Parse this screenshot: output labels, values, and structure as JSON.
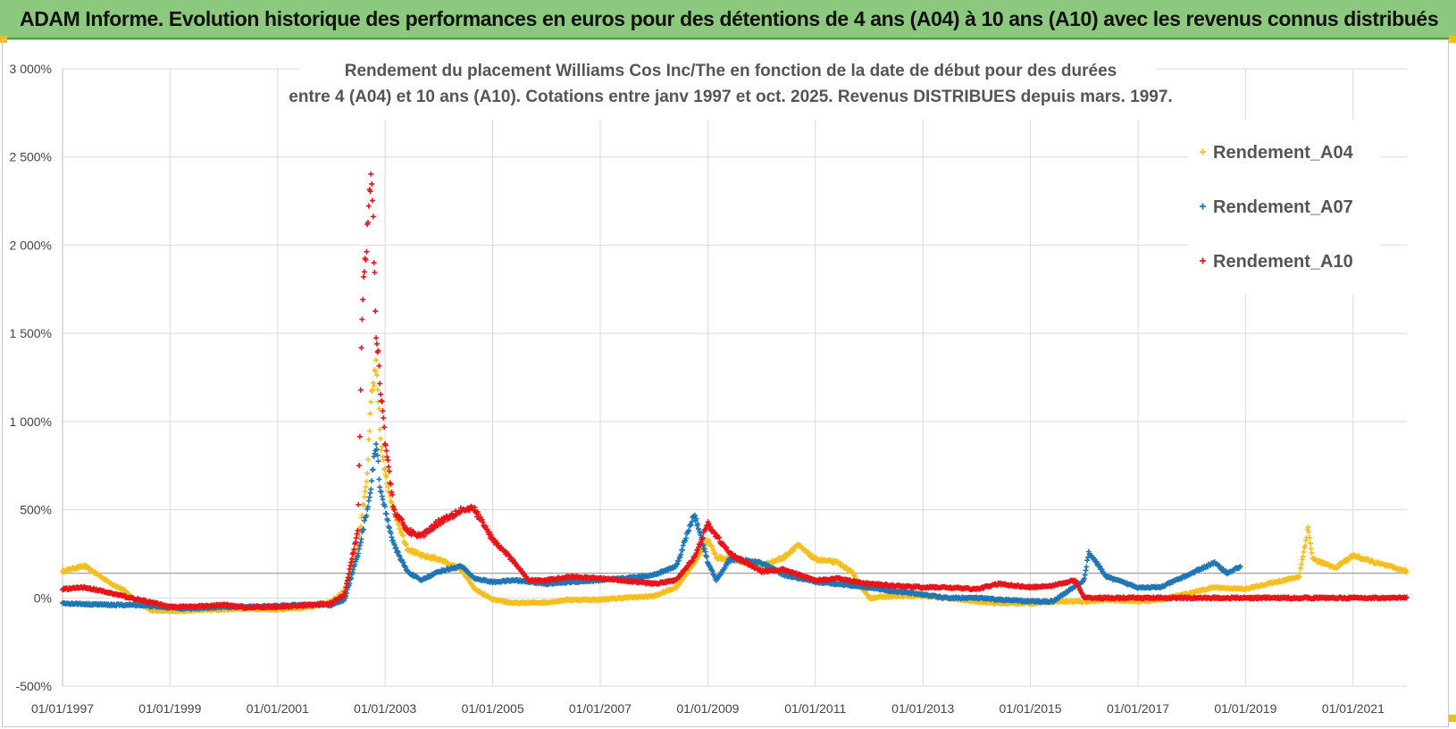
{
  "header": {
    "title": "ADAM Informe. Evolution historique des performances en euros pour des détentions de 4 ans (A04) à 10 ans (A10) avec les revenus connus distribués"
  },
  "chart_data": {
    "type": "scatter",
    "title_lines": [
      "Rendement du placement Williams Cos Inc/The en fonction de la date de début pour des durées",
      "entre 4 (A04) et 10 ans (A10).  Cotations entre janv 1997 et oct. 2025.  Revenus DISTRIBUES depuis mars. 1997."
    ],
    "xlabel": "",
    "ylabel": "",
    "x_range": [
      "1997-01-01",
      "2022-01-01"
    ],
    "ylim": [
      -500,
      3000
    ],
    "y_ticks": [
      {
        "value": 3000,
        "label": "3 000%"
      },
      {
        "value": 2500,
        "label": "2 500%"
      },
      {
        "value": 2000,
        "label": "2 000%"
      },
      {
        "value": 1500,
        "label": "1 500%"
      },
      {
        "value": 1000,
        "label": "1 000%"
      },
      {
        "value": 500,
        "label": "500%"
      },
      {
        "value": 0,
        "label": "0%"
      },
      {
        "value": -500,
        "label": "-500%"
      }
    ],
    "x_ticks": [
      {
        "value": "1997-01-01",
        "label": "01/01/1997"
      },
      {
        "value": "1999-01-01",
        "label": "01/01/1999"
      },
      {
        "value": "2001-01-01",
        "label": "01/01/2001"
      },
      {
        "value": "2003-01-01",
        "label": "01/01/2003"
      },
      {
        "value": "2005-01-01",
        "label": "01/01/2005"
      },
      {
        "value": "2007-01-01",
        "label": "01/01/2007"
      },
      {
        "value": "2009-01-01",
        "label": "01/01/2009"
      },
      {
        "value": "2011-01-01",
        "label": "01/01/2011"
      },
      {
        "value": "2013-01-01",
        "label": "01/01/2013"
      },
      {
        "value": "2015-01-01",
        "label": "01/01/2015"
      },
      {
        "value": "2017-01-01",
        "label": "01/01/2017"
      },
      {
        "value": "2019-01-01",
        "label": "01/01/2019"
      },
      {
        "value": "2021-01-01",
        "label": "01/01/2021"
      }
    ],
    "grid": true,
    "legend_position": "top-right",
    "reference_line": {
      "value": 140,
      "color": "#a0a0a0"
    },
    "series": [
      {
        "name": "Rendement_A04",
        "color": "#f5bf1e",
        "points": [
          [
            "1997-01-01",
            150
          ],
          [
            "1997-03-01",
            165
          ],
          [
            "1997-06-01",
            180
          ],
          [
            "1997-09-01",
            130
          ],
          [
            "1997-12-01",
            80
          ],
          [
            "1998-03-01",
            40
          ],
          [
            "1998-06-01",
            -30
          ],
          [
            "1998-09-01",
            -70
          ],
          [
            "1999-01-01",
            -75
          ],
          [
            "1999-06-01",
            -70
          ],
          [
            "2000-01-01",
            -65
          ],
          [
            "2000-06-01",
            -60
          ],
          [
            "2001-01-01",
            -65
          ],
          [
            "2001-06-01",
            -55
          ],
          [
            "2001-09-01",
            -50
          ],
          [
            "2002-01-01",
            -20
          ],
          [
            "2002-04-01",
            40
          ],
          [
            "2002-07-01",
            300
          ],
          [
            "2002-09-01",
            700
          ],
          [
            "2002-10-01",
            1150
          ],
          [
            "2002-11-01",
            1300
          ],
          [
            "2002-12-01",
            900
          ],
          [
            "2003-01-01",
            700
          ],
          [
            "2003-03-01",
            500
          ],
          [
            "2003-06-01",
            280
          ],
          [
            "2003-09-01",
            240
          ],
          [
            "2004-01-01",
            220
          ],
          [
            "2004-06-01",
            160
          ],
          [
            "2004-09-01",
            50
          ],
          [
            "2005-01-01",
            -10
          ],
          [
            "2005-06-01",
            -30
          ],
          [
            "2006-01-01",
            -25
          ],
          [
            "2006-06-01",
            -10
          ],
          [
            "2007-01-01",
            -10
          ],
          [
            "2007-06-01",
            0
          ],
          [
            "2008-01-01",
            10
          ],
          [
            "2008-06-01",
            60
          ],
          [
            "2008-10-01",
            200
          ],
          [
            "2009-01-01",
            330
          ],
          [
            "2009-03-01",
            230
          ],
          [
            "2009-06-01",
            220
          ],
          [
            "2010-01-01",
            180
          ],
          [
            "2010-06-01",
            230
          ],
          [
            "2010-09-01",
            300
          ],
          [
            "2011-01-01",
            220
          ],
          [
            "2011-06-01",
            200
          ],
          [
            "2011-09-01",
            150
          ],
          [
            "2012-01-01",
            0
          ],
          [
            "2012-06-01",
            10
          ],
          [
            "2013-01-01",
            10
          ],
          [
            "2013-06-01",
            0
          ],
          [
            "2014-01-01",
            -20
          ],
          [
            "2014-06-01",
            -30
          ],
          [
            "2015-01-01",
            -30
          ],
          [
            "2015-06-01",
            -20
          ],
          [
            "2016-01-01",
            -20
          ],
          [
            "2016-06-01",
            -10
          ],
          [
            "2017-01-01",
            -20
          ],
          [
            "2017-06-01",
            -10
          ],
          [
            "2018-01-01",
            30
          ],
          [
            "2018-06-01",
            60
          ],
          [
            "2019-01-01",
            50
          ],
          [
            "2019-06-01",
            80
          ],
          [
            "2020-01-01",
            120
          ],
          [
            "2020-03-01",
            400
          ],
          [
            "2020-04-01",
            220
          ],
          [
            "2020-09-01",
            170
          ],
          [
            "2021-01-01",
            240
          ],
          [
            "2021-06-01",
            200
          ],
          [
            "2022-01-01",
            150
          ]
        ]
      },
      {
        "name": "Rendement_A07",
        "color": "#1f77b4",
        "points": [
          [
            "1997-01-01",
            -30
          ],
          [
            "1997-06-01",
            -35
          ],
          [
            "1998-01-01",
            -40
          ],
          [
            "1998-06-01",
            -40
          ],
          [
            "1999-01-01",
            -55
          ],
          [
            "1999-06-01",
            -60
          ],
          [
            "2000-01-01",
            -50
          ],
          [
            "2000-06-01",
            -50
          ],
          [
            "2001-01-01",
            -45
          ],
          [
            "2001-06-01",
            -40
          ],
          [
            "2002-01-01",
            -40
          ],
          [
            "2002-04-01",
            -10
          ],
          [
            "2002-07-01",
            250
          ],
          [
            "2002-09-01",
            500
          ],
          [
            "2002-10-01",
            650
          ],
          [
            "2002-11-01",
            900
          ],
          [
            "2002-12-01",
            600
          ],
          [
            "2003-01-01",
            500
          ],
          [
            "2003-03-01",
            300
          ],
          [
            "2003-06-01",
            150
          ],
          [
            "2003-09-01",
            100
          ],
          [
            "2004-01-01",
            150
          ],
          [
            "2004-06-01",
            180
          ],
          [
            "2004-09-01",
            110
          ],
          [
            "2005-01-01",
            90
          ],
          [
            "2005-06-01",
            100
          ],
          [
            "2006-01-01",
            80
          ],
          [
            "2006-06-01",
            90
          ],
          [
            "2007-01-01",
            100
          ],
          [
            "2007-06-01",
            110
          ],
          [
            "2008-01-01",
            130
          ],
          [
            "2008-06-01",
            180
          ],
          [
            "2008-10-01",
            480
          ],
          [
            "2009-01-01",
            200
          ],
          [
            "2009-03-01",
            100
          ],
          [
            "2009-06-01",
            220
          ],
          [
            "2010-01-01",
            200
          ],
          [
            "2010-06-01",
            130
          ],
          [
            "2011-01-01",
            90
          ],
          [
            "2011-06-01",
            80
          ],
          [
            "2012-01-01",
            60
          ],
          [
            "2012-06-01",
            40
          ],
          [
            "2013-01-01",
            20
          ],
          [
            "2013-06-01",
            0
          ],
          [
            "2014-01-01",
            0
          ],
          [
            "2014-06-01",
            -10
          ],
          [
            "2015-01-01",
            -20
          ],
          [
            "2015-06-01",
            -20
          ],
          [
            "2016-01-01",
            100
          ],
          [
            "2016-02-01",
            260
          ],
          [
            "2016-06-01",
            120
          ],
          [
            "2017-01-01",
            60
          ],
          [
            "2017-06-01",
            60
          ],
          [
            "2018-01-01",
            140
          ],
          [
            "2018-06-01",
            200
          ],
          [
            "2018-09-01",
            140
          ],
          [
            "2018-12-01",
            180
          ]
        ]
      },
      {
        "name": "Rendement_A10",
        "color": "#e8141a",
        "points": [
          [
            "1997-01-01",
            50
          ],
          [
            "1997-06-01",
            60
          ],
          [
            "1998-01-01",
            20
          ],
          [
            "1998-06-01",
            -10
          ],
          [
            "1999-01-01",
            -50
          ],
          [
            "1999-06-01",
            -50
          ],
          [
            "2000-01-01",
            -40
          ],
          [
            "2000-06-01",
            -55
          ],
          [
            "2001-01-01",
            -50
          ],
          [
            "2001-06-01",
            -45
          ],
          [
            "2002-01-01",
            -30
          ],
          [
            "2002-04-01",
            20
          ],
          [
            "2002-07-01",
            400
          ],
          [
            "2002-08-01",
            1700
          ],
          [
            "2002-09-01",
            2050
          ],
          [
            "2002-10-01",
            2450
          ],
          [
            "2002-11-01",
            1500
          ],
          [
            "2002-12-01",
            1200
          ],
          [
            "2003-01-01",
            900
          ],
          [
            "2003-03-01",
            500
          ],
          [
            "2003-06-01",
            380
          ],
          [
            "2003-09-01",
            350
          ],
          [
            "2004-01-01",
            430
          ],
          [
            "2004-06-01",
            500
          ],
          [
            "2004-09-01",
            500
          ],
          [
            "2005-01-01",
            330
          ],
          [
            "2005-06-01",
            200
          ],
          [
            "2005-09-01",
            100
          ],
          [
            "2006-01-01",
            100
          ],
          [
            "2006-06-01",
            120
          ],
          [
            "2007-01-01",
            110
          ],
          [
            "2007-06-01",
            100
          ],
          [
            "2008-01-01",
            80
          ],
          [
            "2008-06-01",
            100
          ],
          [
            "2008-10-01",
            230
          ],
          [
            "2009-01-01",
            420
          ],
          [
            "2009-03-01",
            350
          ],
          [
            "2009-06-01",
            250
          ],
          [
            "2010-01-01",
            150
          ],
          [
            "2010-06-01",
            160
          ],
          [
            "2011-01-01",
            100
          ],
          [
            "2011-06-01",
            110
          ],
          [
            "2012-01-01",
            80
          ],
          [
            "2012-06-01",
            70
          ],
          [
            "2013-01-01",
            60
          ],
          [
            "2013-06-01",
            60
          ],
          [
            "2014-01-01",
            50
          ],
          [
            "2014-06-01",
            80
          ],
          [
            "2015-01-01",
            60
          ],
          [
            "2015-06-01",
            70
          ],
          [
            "2015-11-01",
            100
          ],
          [
            "2016-01-01",
            0
          ],
          [
            "2017-01-01",
            0
          ],
          [
            "2018-01-01",
            0
          ],
          [
            "2019-01-01",
            0
          ],
          [
            "2020-01-01",
            0
          ],
          [
            "2021-01-01",
            0
          ],
          [
            "2022-01-01",
            0
          ]
        ]
      }
    ]
  }
}
